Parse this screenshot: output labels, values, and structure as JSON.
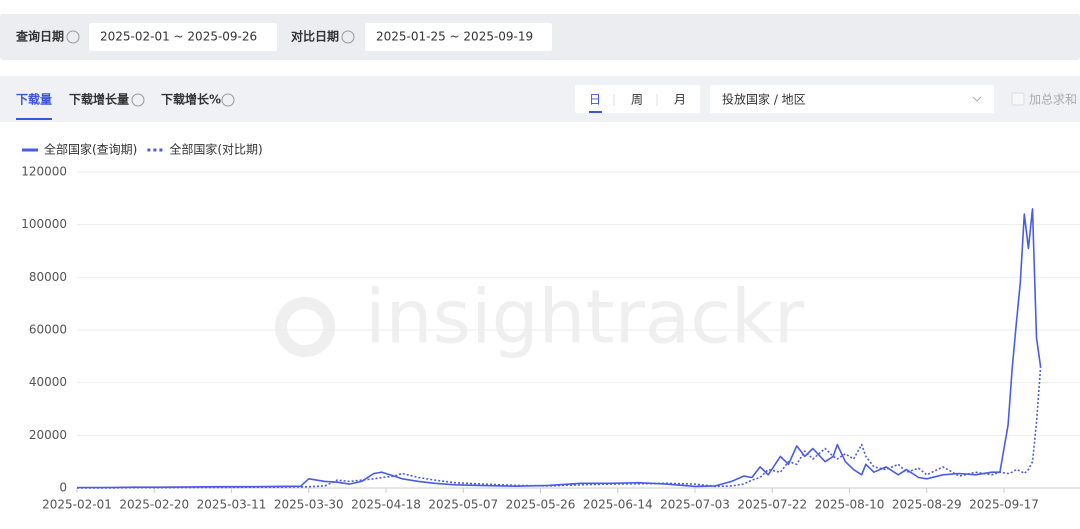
{
  "filters": {
    "query_label": "查询日期",
    "query_range": "2025-02-01 ~ 2025-09-26",
    "compare_label": "对比日期",
    "compare_range": "2025-01-25 ~ 2025-09-19"
  },
  "tabs": [
    "下载量",
    "下载增长量",
    "下载增长%"
  ],
  "granularity": [
    "日",
    "周",
    "月"
  ],
  "region_select": "投放国家 / 地区",
  "sum_toggle": "加总求和",
  "watermark": "insightrackr",
  "chart_data": {
    "type": "line",
    "x": [
      "2025-02-01",
      "2025-02-08",
      "2025-02-15",
      "2025-02-22",
      "2025-03-01",
      "2025-03-08",
      "2025-03-15",
      "2025-03-22",
      "2025-03-28",
      "2025-03-30",
      "2025-04-03",
      "2025-04-06",
      "2025-04-09",
      "2025-04-12",
      "2025-04-15",
      "2025-04-17",
      "2025-04-20",
      "2025-04-22",
      "2025-04-26",
      "2025-04-30",
      "2025-05-05",
      "2025-05-12",
      "2025-05-20",
      "2025-05-28",
      "2025-06-05",
      "2025-06-12",
      "2025-06-19",
      "2025-06-26",
      "2025-07-03",
      "2025-07-08",
      "2025-07-12",
      "2025-07-15",
      "2025-07-17",
      "2025-07-19",
      "2025-07-21",
      "2025-07-24",
      "2025-07-26",
      "2025-07-28",
      "2025-07-30",
      "2025-08-01",
      "2025-08-04",
      "2025-08-06",
      "2025-08-07",
      "2025-08-09",
      "2025-08-11",
      "2025-08-13",
      "2025-08-14",
      "2025-08-16",
      "2025-08-19",
      "2025-08-22",
      "2025-08-24",
      "2025-08-27",
      "2025-08-29",
      "2025-09-02",
      "2025-09-06",
      "2025-09-10",
      "2025-09-14",
      "2025-09-16",
      "2025-09-18",
      "2025-09-19",
      "2025-09-20",
      "2025-09-21",
      "2025-09-22",
      "2025-09-23",
      "2025-09-24",
      "2025-09-25",
      "2025-09-26"
    ],
    "series": [
      {
        "name": "全部国家(查询期)",
        "color": "#4a5ce6",
        "style": "solid",
        "values": [
          200,
          200,
          300,
          300,
          400,
          500,
          500,
          600,
          700,
          3500,
          2500,
          2200,
          1500,
          2500,
          5500,
          6000,
          4500,
          3500,
          2500,
          1800,
          1200,
          900,
          700,
          1000,
          1800,
          1800,
          2000,
          1500,
          600,
          800,
          2500,
          4500,
          4000,
          8000,
          5000,
          12000,
          9000,
          16000,
          12000,
          15000,
          10000,
          12000,
          16500,
          10000,
          7000,
          5000,
          9000,
          6000,
          8000,
          5000,
          7000,
          4000,
          3500,
          5000,
          5500,
          5000,
          6000,
          6000,
          24000,
          45000,
          62000,
          78000,
          104000,
          91000,
          106000,
          57000,
          46000
        ]
      },
      {
        "name": "全部国家(对比期)",
        "color": "#4a5ce6",
        "style": "dotted",
        "values": [
          0,
          0,
          100,
          100,
          200,
          200,
          300,
          300,
          400,
          500,
          800,
          3000,
          2500,
          3000,
          3500,
          4000,
          4500,
          5500,
          4000,
          3000,
          2000,
          1500,
          1000,
          800,
          1200,
          1500,
          1600,
          1800,
          1500,
          600,
          800,
          1500,
          3000,
          4000,
          7000,
          6000,
          10000,
          9000,
          14000,
          11000,
          15000,
          12000,
          11000,
          13000,
          11000,
          16500,
          12000,
          8000,
          7000,
          9000,
          6000,
          7500,
          5000,
          8000,
          4500,
          6000,
          5000,
          6000,
          5500,
          6000,
          7000,
          6500,
          5500,
          7000,
          10000,
          25000,
          46000
        ]
      }
    ],
    "xlim": [
      "2025-02-01",
      "2025-09-26"
    ],
    "xticks": [
      "2025-02-01",
      "2025-02-20",
      "2025-03-11",
      "2025-03-30",
      "2025-04-18",
      "2025-05-07",
      "2025-05-26",
      "2025-06-14",
      "2025-07-03",
      "2025-07-22",
      "2025-08-10",
      "2025-08-29",
      "2025-09-17"
    ],
    "ylim": [
      0,
      120000
    ],
    "yticks": [
      0,
      20000,
      40000,
      60000,
      80000,
      100000,
      120000
    ],
    "grid": true
  }
}
